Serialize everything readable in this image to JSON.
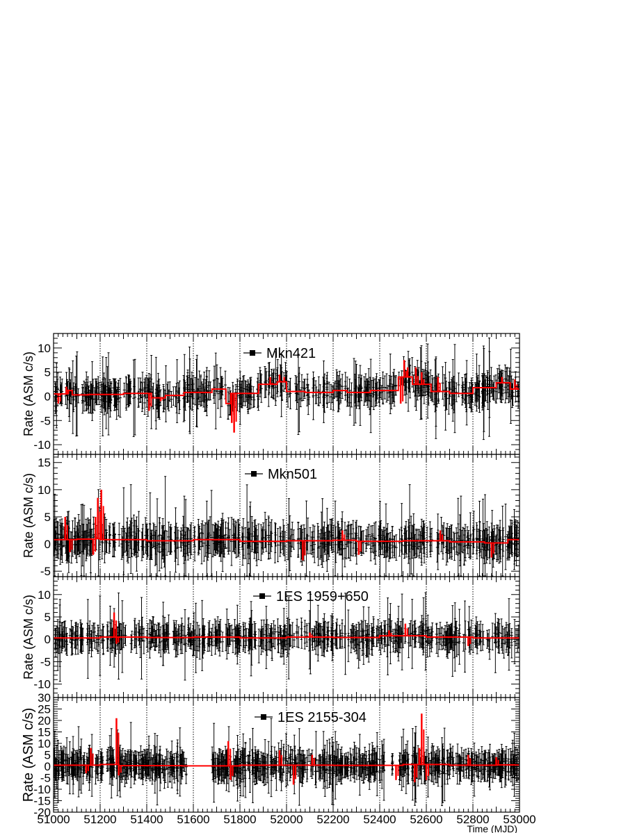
{
  "chart_data": [
    {
      "type": "line",
      "source_label": "Mkn421",
      "xlim": [
        51000,
        53000
      ],
      "ylim": [
        -12,
        13
      ],
      "yticks": [
        -10,
        -5,
        0,
        5,
        10
      ],
      "ylabel": "Rate (ASM c/s)",
      "vlines": [
        51200,
        51400,
        51600,
        51800,
        52000,
        52200,
        52400,
        52600,
        52800
      ],
      "blocks": [
        [
          51000,
          0.5
        ],
        [
          51060,
          1.2
        ],
        [
          51080,
          0.3
        ],
        [
          51150,
          0.4
        ],
        [
          51300,
          0.6
        ],
        [
          51420,
          -0.3
        ],
        [
          51480,
          0.2
        ],
        [
          51560,
          0.8
        ],
        [
          51680,
          1.5
        ],
        [
          51740,
          -1.5
        ],
        [
          51760,
          0.6
        ],
        [
          51880,
          2.5
        ],
        [
          51960,
          3.0
        ],
        [
          52000,
          1.0
        ],
        [
          52080,
          0.8
        ],
        [
          52200,
          1.2
        ],
        [
          52260,
          0.8
        ],
        [
          52360,
          1.2
        ],
        [
          52480,
          4.0
        ],
        [
          52540,
          2.5
        ],
        [
          52620,
          1.0
        ],
        [
          52700,
          0.6
        ],
        [
          52800,
          1.8
        ],
        [
          52900,
          2.8
        ],
        [
          52960,
          1.5
        ],
        [
          53000,
          1.5
        ]
      ],
      "spikes": [
        [
          51020,
          -1.5
        ],
        [
          51055,
          2.0
        ],
        [
          51410,
          -3.0
        ],
        [
          51460,
          -1.0
        ],
        [
          51765,
          -5.5
        ],
        [
          51775,
          -7.5
        ],
        [
          51930,
          4.0
        ],
        [
          51970,
          4.5
        ],
        [
          51990,
          4.0
        ],
        [
          52490,
          -1.5
        ],
        [
          52505,
          7.5
        ],
        [
          52520,
          6.0
        ],
        [
          52555,
          6.0
        ],
        [
          52580,
          5.0
        ],
        [
          52650,
          4.0
        ],
        [
          52925,
          4.0
        ],
        [
          52980,
          3.5
        ]
      ]
    },
    {
      "type": "line",
      "source_label": "Mkn501",
      "xlim": [
        51000,
        53000
      ],
      "ylim": [
        -6,
        16.5
      ],
      "yticks": [
        -5,
        0,
        5,
        10,
        15
      ],
      "ylabel": "Rate (ASM c/s)",
      "vlines": [
        51200,
        51400,
        51600,
        51800,
        52000,
        52200,
        52400,
        52600,
        52800
      ],
      "blocks": [
        [
          51000,
          0.8
        ],
        [
          51100,
          0.9
        ],
        [
          51180,
          1.0
        ],
        [
          51200,
          0.8
        ],
        [
          51400,
          0.6
        ],
        [
          51600,
          0.8
        ],
        [
          51800,
          0.5
        ],
        [
          52000,
          0.6
        ],
        [
          52200,
          0.7
        ],
        [
          52300,
          0.5
        ],
        [
          52500,
          0.6
        ],
        [
          52700,
          0.4
        ],
        [
          52850,
          0.2
        ],
        [
          52950,
          0.8
        ],
        [
          53000,
          0.8
        ]
      ],
      "spikes": [
        [
          51050,
          5.0
        ],
        [
          51170,
          -2.0
        ],
        [
          51180,
          5.0
        ],
        [
          51190,
          8.5
        ],
        [
          51205,
          10.0
        ],
        [
          51070,
          -1.5
        ],
        [
          52070,
          -3.0
        ],
        [
          52240,
          2.5
        ],
        [
          52310,
          -2.0
        ],
        [
          52660,
          2.5
        ],
        [
          52880,
          -2.5
        ]
      ]
    },
    {
      "type": "line",
      "source_label": "1ES 1959+650",
      "xlim": [
        51000,
        53000
      ],
      "ylim": [
        -13,
        14
      ],
      "yticks": [
        -10,
        -5,
        0,
        5,
        10
      ],
      "ylabel": "Rate (ASM c/s)",
      "vlines": [
        51200,
        51400,
        51600,
        51800,
        52000,
        52200,
        52400,
        52600,
        52800
      ],
      "blocks": [
        [
          51000,
          0.3
        ],
        [
          51200,
          0.5
        ],
        [
          51400,
          0.4
        ],
        [
          51600,
          0.5
        ],
        [
          51800,
          0.3
        ],
        [
          52000,
          0.5
        ],
        [
          52200,
          0.4
        ],
        [
          52400,
          0.8
        ],
        [
          52600,
          0.5
        ],
        [
          52800,
          0.3
        ],
        [
          53000,
          0.3
        ]
      ],
      "spikes": [
        [
          51260,
          6.0
        ],
        [
          51270,
          -1.0
        ],
        [
          52100,
          1.5
        ],
        [
          52440,
          2.0
        ],
        [
          52510,
          3.5
        ],
        [
          52780,
          -1.5
        ]
      ]
    },
    {
      "type": "line",
      "source_label": "1ES 2155-304",
      "xlim": [
        51000,
        53000
      ],
      "ylim": [
        -20,
        30
      ],
      "yticks": [
        -20,
        -15,
        -10,
        -5,
        0,
        5,
        10,
        15,
        20,
        25,
        30
      ],
      "ylabel": "Rate (ASM c/s)",
      "xlabel": "Time (MJD)",
      "xticks": [
        51000,
        51200,
        51400,
        51600,
        51800,
        52000,
        52200,
        52400,
        52600,
        52800,
        53000
      ],
      "vlines": [
        51200,
        51400,
        51600,
        51800,
        52000,
        52200,
        52400,
        52600,
        52800
      ],
      "blocks": [
        [
          51000,
          0.5
        ],
        [
          51200,
          0.8
        ],
        [
          51280,
          0.3
        ],
        [
          51550,
          0.2
        ],
        [
          51800,
          0.5
        ],
        [
          52000,
          0.5
        ],
        [
          52200,
          0.4
        ],
        [
          52300,
          0.4
        ],
        [
          52500,
          0.8
        ],
        [
          52700,
          0.5
        ],
        [
          52900,
          0.6
        ],
        [
          53000,
          0.6
        ]
      ],
      "spikes": [
        [
          51140,
          -3.0
        ],
        [
          51160,
          8.0
        ],
        [
          51270,
          21.0
        ],
        [
          51280,
          -4.0
        ],
        [
          51750,
          11.0
        ],
        [
          51760,
          -6.0
        ],
        [
          51970,
          7.0
        ],
        [
          52030,
          -8.0
        ],
        [
          52110,
          5.0
        ],
        [
          52470,
          -6.0
        ],
        [
          52550,
          -7.0
        ],
        [
          52570,
          8.0
        ],
        [
          52580,
          23.0
        ],
        [
          52600,
          -6.0
        ],
        [
          52780,
          5.0
        ],
        [
          52900,
          4.0
        ]
      ]
    }
  ]
}
